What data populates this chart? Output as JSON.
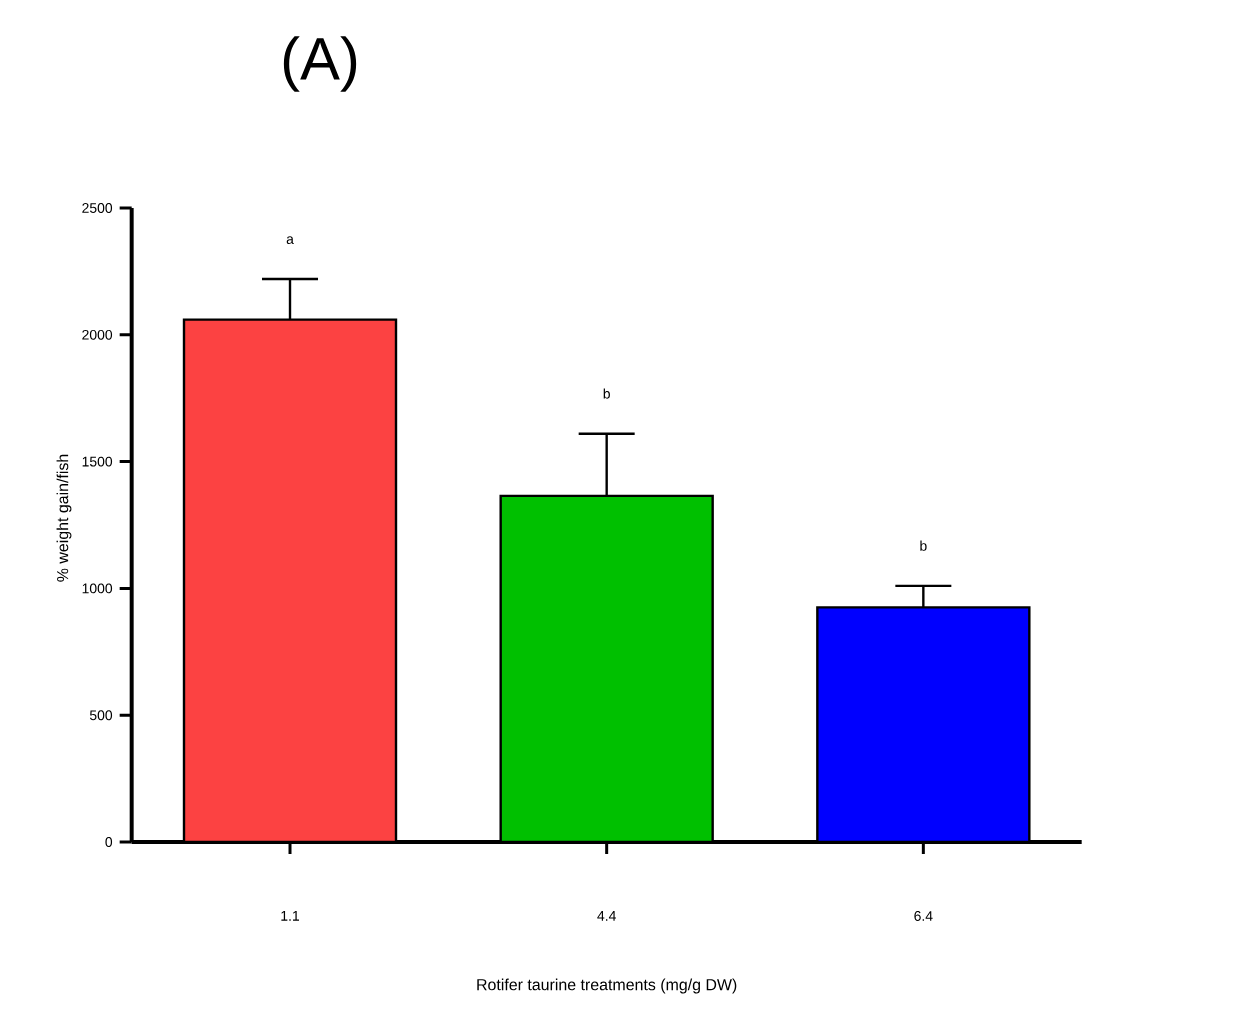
{
  "chart_data": {
    "type": "bar",
    "title": "(A)",
    "xlabel": "Rotifer taurine treatments (mg/g DW)",
    "ylabel": "% weight gain/fish",
    "categories": [
      "1.1",
      "4.4",
      "6.4"
    ],
    "values": [
      2060,
      1365,
      925
    ],
    "errors": [
      160,
      245,
      85
    ],
    "colors": [
      "#fc4242",
      "#00c000",
      "#0000ff"
    ],
    "ylim": [
      0,
      2500
    ],
    "yticks": [
      0,
      500,
      1000,
      1500,
      2000,
      2500
    ],
    "annotations": [
      {
        "text": "a",
        "x": "1.1",
        "y": 2220
      },
      {
        "text": "b",
        "x": "4.4",
        "y": 1610
      },
      {
        "text": "b",
        "x": "6.4",
        "y": 1010
      }
    ],
    "grid": false
  }
}
